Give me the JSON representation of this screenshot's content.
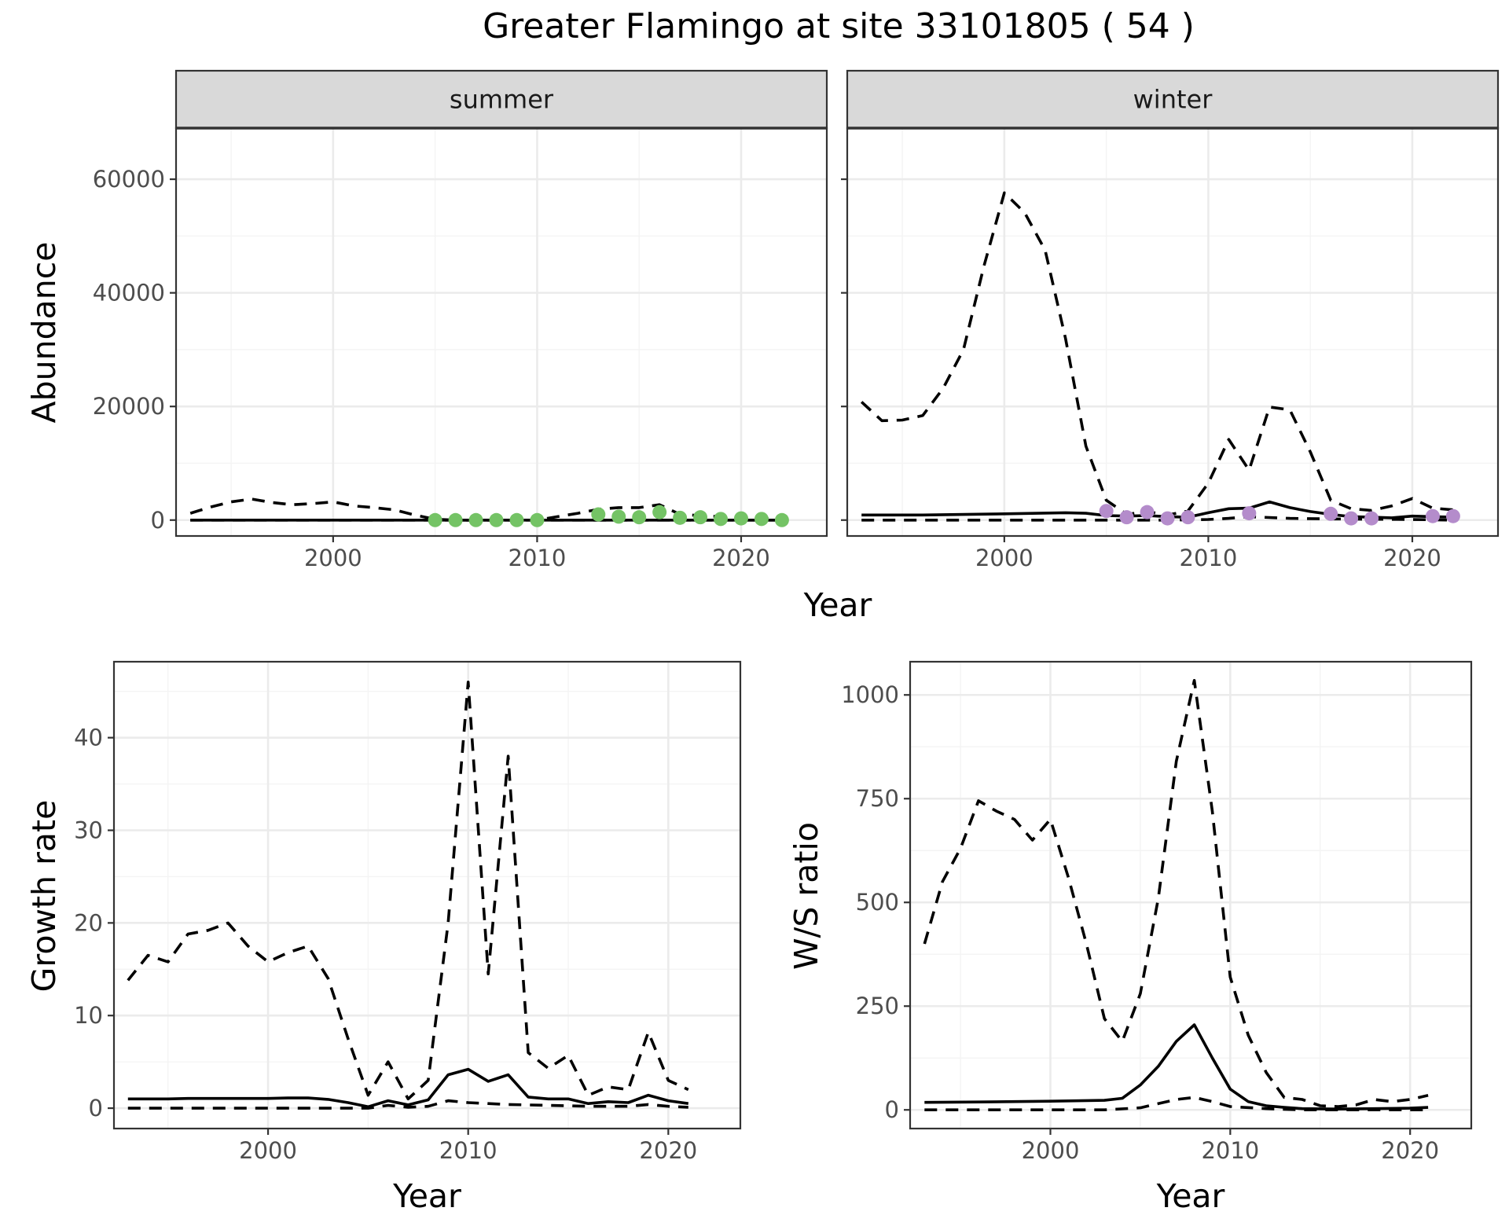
{
  "figure": {
    "title": "Greater Flamingo at site 33101805 ( 54 )",
    "top_xlabel": "Year"
  },
  "chart_data": [
    {
      "id": "summer",
      "type": "line",
      "facet_label": "summer",
      "xlabel": "",
      "ylabel": "Abundance",
      "xlim": [
        1992.3,
        2024.2
      ],
      "ylim": [
        -2800,
        69000
      ],
      "xticks": [
        2000,
        2010,
        2020
      ],
      "yticks": [
        0,
        20000,
        40000,
        60000
      ],
      "show_yticks": true,
      "grid": true,
      "point_color": "#74c365",
      "series": [
        {
          "style": "solid",
          "x": [
            1993,
            1996,
            2000,
            2004,
            2008,
            2012,
            2016,
            2020,
            2022
          ],
          "y": [
            0,
            0,
            0,
            0,
            0,
            0,
            0,
            0,
            0
          ]
        },
        {
          "style": "dashed",
          "x": [
            1993,
            1994,
            1995,
            1996,
            1997,
            1998,
            1999,
            2000,
            2001,
            2002,
            2003,
            2004,
            2005,
            2006,
            2007,
            2008,
            2009,
            2010,
            2011,
            2012,
            2013,
            2014,
            2015,
            2016,
            2017,
            2018,
            2019,
            2020,
            2021,
            2022
          ],
          "y": [
            1200,
            2300,
            3200,
            3700,
            3100,
            2700,
            2900,
            3200,
            2500,
            2200,
            1800,
            900,
            150,
            0,
            0,
            0,
            0,
            0,
            600,
            1200,
            1900,
            2200,
            2200,
            2700,
            1000,
            800,
            600,
            500,
            300,
            200
          ]
        },
        {
          "style": "dashed",
          "x": [
            1993,
            2000,
            2010,
            2016,
            2022
          ],
          "y": [
            0,
            0,
            0,
            0,
            0
          ]
        }
      ],
      "points": {
        "x": [
          2005,
          2006,
          2007,
          2008,
          2009,
          2010,
          2013,
          2014,
          2015,
          2016,
          2017,
          2018,
          2019,
          2020,
          2021,
          2022
        ],
        "y": [
          0,
          0,
          0,
          0,
          0,
          0,
          1000,
          600,
          500,
          1400,
          400,
          500,
          200,
          300,
          200,
          0
        ]
      }
    },
    {
      "id": "winter",
      "type": "line",
      "facet_label": "winter",
      "xlabel": "",
      "ylabel": "",
      "xlim": [
        1992.3,
        2024.2
      ],
      "ylim": [
        -2800,
        69000
      ],
      "xticks": [
        2000,
        2010,
        2020
      ],
      "yticks": [
        0,
        20000,
        40000,
        60000
      ],
      "show_yticks": false,
      "grid": true,
      "point_color": "#b48ccb",
      "series": [
        {
          "style": "solid",
          "x": [
            1993,
            1996,
            2000,
            2003,
            2004,
            2005,
            2006,
            2007,
            2008,
            2009,
            2010,
            2011,
            2012,
            2013,
            2014,
            2015,
            2016,
            2017,
            2018,
            2019,
            2020,
            2021,
            2022
          ],
          "y": [
            900,
            900,
            1100,
            1300,
            1200,
            800,
            700,
            800,
            600,
            500,
            1300,
            2000,
            2100,
            3200,
            2200,
            1500,
            1000,
            600,
            500,
            400,
            700,
            600,
            500
          ]
        },
        {
          "style": "dashed",
          "x": [
            1993,
            1994,
            1995,
            1996,
            1997,
            1998,
            1999,
            2000,
            2001,
            2002,
            2003,
            2004,
            2005,
            2006,
            2007,
            2008,
            2009,
            2010,
            2011,
            2012,
            2013,
            2014,
            2015,
            2016,
            2017,
            2018,
            2019,
            2020,
            2021,
            2022
          ],
          "y": [
            20800,
            17500,
            17600,
            18400,
            23200,
            30000,
            44700,
            57600,
            54100,
            47500,
            32000,
            13000,
            3500,
            1000,
            1500,
            900,
            1600,
            6500,
            14200,
            8800,
            19900,
            19400,
            12000,
            3500,
            2000,
            1700,
            2500,
            3800,
            2100,
            1800
          ]
        },
        {
          "style": "dashed",
          "x": [
            1993,
            1998,
            2004,
            2008,
            2010,
            2011,
            2012,
            2014,
            2016,
            2020,
            2022
          ],
          "y": [
            0,
            0,
            0,
            0,
            100,
            300,
            600,
            300,
            200,
            100,
            0
          ]
        }
      ],
      "points": {
        "x": [
          2005,
          2006,
          2007,
          2008,
          2009,
          2012,
          2016,
          2017,
          2018,
          2021,
          2022
        ],
        "y": [
          1600,
          500,
          1400,
          300,
          500,
          1200,
          1100,
          300,
          300,
          700,
          700
        ]
      }
    },
    {
      "id": "growth",
      "type": "line",
      "xlabel": "Year",
      "ylabel": "Growth rate",
      "xlim": [
        1992.3,
        2023.6
      ],
      "ylim": [
        -2.2,
        48.2
      ],
      "xticks": [
        2000,
        2010,
        2020
      ],
      "yticks": [
        0,
        10,
        20,
        30,
        40
      ],
      "show_yticks": true,
      "grid": true,
      "series": [
        {
          "style": "solid",
          "x": [
            1993,
            1994,
            1995,
            1996,
            1997,
            1998,
            1999,
            2000,
            2001,
            2002,
            2003,
            2004,
            2005,
            2006,
            2007,
            2008,
            2009,
            2010,
            2011,
            2012,
            2013,
            2014,
            2015,
            2016,
            2017,
            2018,
            2019,
            2020,
            2021
          ],
          "y": [
            1.0,
            1.0,
            1.0,
            1.05,
            1.05,
            1.05,
            1.05,
            1.05,
            1.1,
            1.1,
            0.95,
            0.6,
            0.15,
            0.8,
            0.35,
            0.9,
            3.6,
            4.2,
            2.9,
            3.6,
            1.2,
            1.0,
            1.0,
            0.5,
            0.7,
            0.6,
            1.4,
            0.8,
            0.5
          ]
        },
        {
          "style": "dashed",
          "x": [
            1993,
            1994,
            1995,
            1996,
            1997,
            1998,
            1999,
            2000,
            2001,
            2002,
            2003,
            2004,
            2005,
            2006,
            2007,
            2008,
            2009,
            2010,
            2011,
            2012,
            2013,
            2014,
            2015,
            2016,
            2017,
            2018,
            2019,
            2020,
            2021
          ],
          "y": [
            13.8,
            16.5,
            15.8,
            18.8,
            19.2,
            20.0,
            17.5,
            15.8,
            16.8,
            17.5,
            14.0,
            7.5,
            1.4,
            5.0,
            1.0,
            3.0,
            20.0,
            46.0,
            14.5,
            38.0,
            6.0,
            4.3,
            5.7,
            1.4,
            2.3,
            2.0,
            8.2,
            3.0,
            2.0
          ]
        },
        {
          "style": "dashed",
          "x": [
            1993,
            1998,
            2003,
            2005,
            2006,
            2007,
            2008,
            2009,
            2010,
            2011,
            2012,
            2014,
            2016,
            2018,
            2019,
            2020,
            2021
          ],
          "y": [
            0,
            0,
            0,
            0,
            0.3,
            0.1,
            0.2,
            0.8,
            0.6,
            0.5,
            0.4,
            0.3,
            0.2,
            0.2,
            0.4,
            0.2,
            0.1
          ]
        }
      ]
    },
    {
      "id": "ratio",
      "type": "line",
      "xlabel": "Year",
      "ylabel": "W/S ratio",
      "xlim": [
        1992.2,
        2023.4
      ],
      "ylim": [
        -45,
        1080
      ],
      "xticks": [
        2000,
        2010,
        2020
      ],
      "yticks": [
        0,
        250,
        500,
        750,
        1000
      ],
      "show_yticks": true,
      "grid": true,
      "series": [
        {
          "style": "solid",
          "x": [
            1993,
            1996,
            2000,
            2003,
            2004,
            2005,
            2006,
            2007,
            2008,
            2009,
            2010,
            2011,
            2012,
            2013,
            2014,
            2016,
            2018,
            2020,
            2021
          ],
          "y": [
            18,
            19,
            21,
            23,
            28,
            60,
            105,
            165,
            205,
            125,
            50,
            20,
            10,
            6,
            3,
            2,
            3,
            4,
            6
          ]
        },
        {
          "style": "dashed",
          "x": [
            1993,
            1994,
            1995,
            1996,
            1997,
            1998,
            1999,
            2000,
            2001,
            2002,
            2003,
            2004,
            2005,
            2006,
            2007,
            2008,
            2009,
            2010,
            2011,
            2012,
            2013,
            2014,
            2015,
            2016,
            2017,
            2018,
            2019,
            2020,
            2021
          ],
          "y": [
            400,
            550,
            630,
            745,
            720,
            700,
            650,
            700,
            560,
            400,
            220,
            165,
            280,
            510,
            840,
            1035,
            720,
            320,
            180,
            90,
            30,
            25,
            10,
            8,
            12,
            25,
            20,
            25,
            35
          ]
        },
        {
          "style": "dashed",
          "x": [
            1993,
            1998,
            2003,
            2005,
            2006,
            2007,
            2008,
            2009,
            2010,
            2012,
            2014,
            2016,
            2018,
            2021
          ],
          "y": [
            0,
            0,
            0,
            5,
            15,
            25,
            30,
            20,
            8,
            3,
            0,
            0,
            0,
            0
          ]
        }
      ]
    }
  ]
}
